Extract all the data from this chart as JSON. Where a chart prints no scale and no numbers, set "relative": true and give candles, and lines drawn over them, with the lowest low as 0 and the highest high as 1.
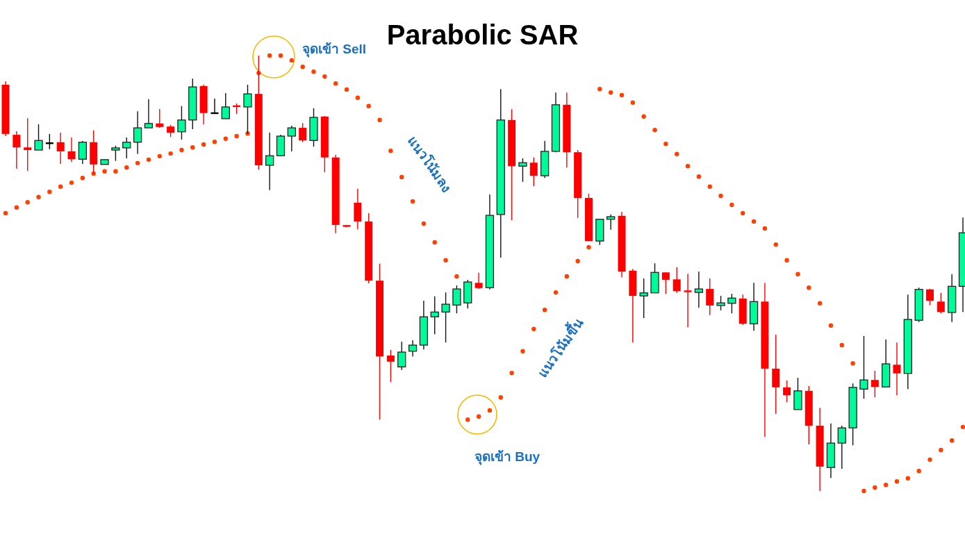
{
  "chart_data": {
    "type": "candlestick",
    "relative": true,
    "title": "Parabolic SAR",
    "annotations": [
      "จุดเข้า Sell",
      "แนวโน้มลง",
      "จุดเข้า Buy",
      "แนวโน้มขึ้น"
    ],
    "categories": [
      null,
      null,
      null,
      null,
      null,
      null,
      null,
      null,
      null,
      null,
      null,
      null,
      null,
      null,
      null,
      null,
      null,
      null,
      null,
      null,
      null,
      null,
      null,
      null,
      null,
      null,
      null,
      null,
      null,
      null,
      null,
      null,
      null,
      null,
      null,
      null,
      null,
      null,
      null,
      null,
      null,
      null,
      null,
      null,
      null,
      null,
      null,
      null,
      null,
      null,
      null,
      null,
      null,
      null,
      null,
      null,
      null,
      null,
      null,
      null,
      null,
      null,
      null,
      null,
      null,
      null,
      null,
      null,
      null,
      null,
      null,
      null,
      null,
      null,
      null,
      null,
      null,
      null,
      null,
      null,
      null,
      null,
      null,
      null,
      null,
      null,
      null,
      null
    ],
    "ohlc": [
      [
        0.933,
        0.941,
        0.815,
        0.82
      ],
      [
        0.818,
        0.826,
        0.74,
        0.789
      ],
      [
        0.789,
        0.856,
        0.735,
        0.783
      ],
      [
        0.783,
        0.842,
        0.783,
        0.805
      ],
      [
        0.799,
        0.82,
        0.785,
        0.799
      ],
      [
        0.801,
        0.823,
        0.751,
        0.78
      ],
      [
        0.78,
        0.812,
        0.756,
        0.762
      ],
      [
        0.762,
        0.804,
        0.751,
        0.801
      ],
      [
        0.801,
        0.828,
        0.729,
        0.75
      ],
      [
        0.75,
        0.761,
        0.75,
        0.761
      ],
      [
        0.783,
        0.793,
        0.758,
        0.788
      ],
      [
        0.788,
        0.812,
        0.764,
        0.801
      ],
      [
        0.801,
        0.872,
        0.774,
        0.834
      ],
      [
        0.834,
        0.9,
        0.834,
        0.844
      ],
      [
        0.844,
        0.877,
        0.834,
        0.836
      ],
      [
        0.837,
        0.841,
        0.813,
        0.823
      ],
      [
        0.825,
        0.884,
        0.807,
        0.852
      ],
      [
        0.852,
        0.947,
        0.831,
        0.928
      ],
      [
        0.93,
        0.933,
        0.842,
        0.868
      ],
      [
        0.868,
        0.901,
        0.866,
        0.868
      ],
      [
        0.855,
        0.914,
        0.855,
        0.882
      ],
      [
        0.884,
        0.89,
        0.866,
        0.882
      ],
      [
        0.882,
        0.933,
        0.821,
        0.912
      ],
      [
        0.912,
        1,
        0.738,
        0.748
      ],
      [
        0.748,
        0.823,
        0.691,
        0.77
      ],
      [
        0.77,
        0.818,
        0.769,
        0.815
      ],
      [
        0.815,
        0.839,
        0.78,
        0.834
      ],
      [
        0.834,
        0.845,
        0.801,
        0.805
      ],
      [
        0.805,
        0.879,
        0.791,
        0.858
      ],
      [
        0.86,
        0.861,
        0.732,
        0.766
      ],
      [
        0.766,
        0.772,
        0.592,
        0.611
      ],
      [
        0.609,
        0.611,
        0.606,
        0.608
      ],
      [
        0.662,
        0.694,
        0.601,
        0.619
      ],
      [
        0.619,
        0.638,
        0.477,
        0.483
      ],
      [
        0.483,
        0.522,
        0.164,
        0.309
      ],
      [
        0.311,
        0.324,
        0.25,
        0.297
      ],
      [
        0.285,
        0.343,
        0.278,
        0.319
      ],
      [
        0.321,
        0.346,
        0.309,
        0.335
      ],
      [
        0.335,
        0.437,
        0.325,
        0.4
      ],
      [
        0.4,
        0.447,
        0.36,
        0.411
      ],
      [
        0.411,
        0.456,
        0.341,
        0.429
      ],
      [
        0.427,
        0.472,
        0.408,
        0.464
      ],
      [
        0.432,
        0.485,
        0.419,
        0.48
      ],
      [
        0.478,
        0.501,
        0.464,
        0.466
      ],
      [
        0.467,
        0.681,
        0.463,
        0.633
      ],
      [
        0.635,
        0.923,
        0.536,
        0.852
      ],
      [
        0.852,
        0.877,
        0.622,
        0.746
      ],
      [
        0.746,
        0.764,
        0.71,
        0.754
      ],
      [
        0.754,
        0.766,
        0.7,
        0.724
      ],
      [
        0.724,
        0.804,
        0.719,
        0.78
      ],
      [
        0.78,
        0.915,
        0.778,
        0.887
      ],
      [
        0.887,
        0.915,
        0.743,
        0.778
      ],
      [
        0.778,
        0.783,
        0.627,
        0.673
      ],
      [
        0.673,
        0.683,
        0.574,
        0.574
      ],
      [
        0.574,
        0.624,
        0.565,
        0.624
      ],
      [
        0.624,
        0.635,
        0.6,
        0.63
      ],
      [
        0.632,
        0.641,
        0.491,
        0.504
      ],
      [
        0.506,
        0.51,
        0.341,
        0.448
      ],
      [
        0.448,
        0.488,
        0.397,
        0.455
      ],
      [
        0.455,
        0.523,
        0.455,
        0.502
      ],
      [
        0.502,
        0.502,
        0.453,
        0.485
      ],
      [
        0.486,
        0.514,
        0.455,
        0.459
      ],
      [
        0.459,
        0.499,
        0.376,
        0.456
      ],
      [
        0.456,
        0.504,
        0.421,
        0.464
      ],
      [
        0.464,
        0.488,
        0.404,
        0.426
      ],
      [
        0.426,
        0.448,
        0.415,
        0.432
      ],
      [
        0.431,
        0.453,
        0.408,
        0.443
      ],
      [
        0.442,
        0.451,
        0.381,
        0.384
      ],
      [
        0.384,
        0.478,
        0.368,
        0.435
      ],
      [
        0.435,
        0.478,
        0.124,
        0.281
      ],
      [
        0.281,
        0.359,
        0.177,
        0.238
      ],
      [
        0.238,
        0.254,
        0.204,
        0.22
      ],
      [
        0.187,
        0.26,
        0.187,
        0.23
      ],
      [
        0.23,
        0.241,
        0.107,
        0.15
      ],
      [
        0.15,
        0.191,
        0,
        0.056
      ],
      [
        0.054,
        0.155,
        0.03,
        0.11
      ],
      [
        0.11,
        0.15,
        0.051,
        0.145
      ],
      [
        0.145,
        0.247,
        0.105,
        0.238
      ],
      [
        0.234,
        0.356,
        0.212,
        0.255
      ],
      [
        0.255,
        0.276,
        0.215,
        0.239
      ],
      [
        0.239,
        0.348,
        0.239,
        0.292
      ],
      [
        0.29,
        0.341,
        0.22,
        0.27
      ],
      [
        0.27,
        0.451,
        0.234,
        0.394
      ],
      [
        0.392,
        0.467,
        0.388,
        0.463
      ],
      [
        0.463,
        0.464,
        0.427,
        0.437
      ],
      [
        0.435,
        0.455,
        0.408,
        0.411
      ],
      [
        0.41,
        0.498,
        0.388,
        0.47
      ],
      [
        0.47,
        0.628,
        0.411,
        0.593
      ]
    ],
    "colors": [
      "#ff0000",
      "#ff0000",
      "#ff0000",
      "#00fa9a",
      "#000000",
      "#ff0000",
      "#ff0000",
      "#00fa9a",
      "#ff0000",
      "#00fa9a",
      "#00fa9a",
      "#00fa9a",
      "#00fa9a",
      "#00fa9a",
      "#ff0000",
      "#ff0000",
      "#00fa9a",
      "#00fa9a",
      "#ff0000",
      "#000000",
      "#00fa9a",
      "#ff0000",
      "#00fa9a",
      "#ff0000",
      "#00fa9a",
      "#00fa9a",
      "#00fa9a",
      "#ff0000",
      "#00fa9a",
      "#ff0000",
      "#ff0000",
      "#ff0000",
      "#ff0000",
      "#ff0000",
      "#ff0000",
      "#ff0000",
      "#00fa9a",
      "#00fa9a",
      "#00fa9a",
      "#00fa9a",
      "#00fa9a",
      "#00fa9a",
      "#00fa9a",
      "#ff0000",
      "#00fa9a",
      "#00fa9a",
      "#ff0000",
      "#00fa9a",
      "#ff0000",
      "#00fa9a",
      "#00fa9a",
      "#ff0000",
      "#ff0000",
      "#ff0000",
      "#00fa9a",
      "#00fa9a",
      "#ff0000",
      "#ff0000",
      "#00fa9a",
      "#00fa9a",
      "#ff0000",
      "#ff0000",
      "#ff0000",
      "#00fa9a",
      "#ff0000",
      "#00fa9a",
      "#00fa9a",
      "#ff0000",
      "#00fa9a",
      "#ff0000",
      "#ff0000",
      "#ff0000",
      "#00fa9a",
      "#ff0000",
      "#ff0000",
      "#00fa9a",
      "#00fa9a",
      "#00fa9a",
      "#00fa9a",
      "#ff0000",
      "#00fa9a",
      "#ff0000",
      "#00fa9a",
      "#00fa9a",
      "#ff0000",
      "#ff0000",
      "#00fa9a",
      "#00fa9a"
    ],
    "series": [
      {
        "type": "scatter",
        "color": "#ff4000",
        "values": [
          0.638,
          0.651,
          0.663,
          0.675,
          0.687,
          0.699,
          0.708,
          0.719,
          0.729,
          0.734,
          0.734,
          0.743,
          0.753,
          0.761,
          0.769,
          0.775,
          0.783,
          0.789,
          0.796,
          0.802,
          0.809,
          0.815,
          0.821,
          0.96,
          1,
          1,
          0.989,
          0.974,
          0.963,
          0.952,
          0.936,
          0.922,
          0.903,
          0.884,
          0.852,
          0.781,
          0.721,
          0.665,
          0.614,
          0.571,
          0.53,
          0.493,
          0.164,
          0.171,
          0.185,
          0.215,
          0.271,
          0.321,
          0.372,
          0.416,
          0.456,
          0.493,
          0.528,
          0.56,
          0.923,
          0.915,
          0.909,
          0.892,
          0.86,
          0.829,
          0.797,
          0.774,
          0.746,
          0.722,
          0.699,
          0.678,
          0.657,
          0.638,
          0.619,
          0.603,
          0.566,
          0.53,
          0.498,
          0.467,
          0.431,
          0.38,
          0.335,
          0.293,
          0,
          0.008,
          0.014,
          0.022,
          0.029,
          0.046,
          0.072,
          0.094,
          0.116,
          0.147
        ]
      }
    ]
  }
}
